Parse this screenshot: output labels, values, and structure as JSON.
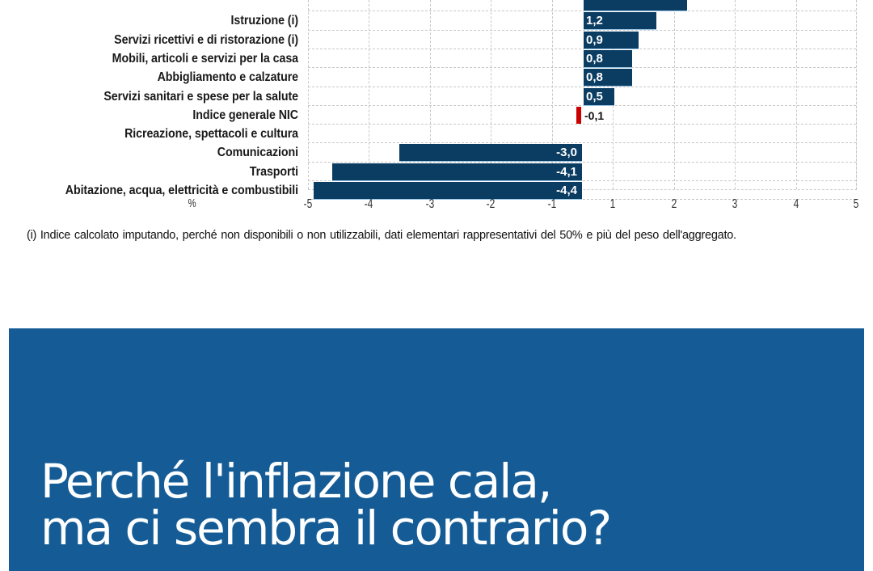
{
  "chart_data": {
    "type": "bar",
    "orientation": "horizontal",
    "unit_label": "%",
    "categories": [
      "(cut off)",
      "Istruzione (i)",
      "Servizi ricettivi e di ristorazione (i)",
      "Mobili, articoli e servizi per la casa",
      "Abbigliamento e calzature",
      "Servizi sanitari e spese per la salute",
      "Indice generale NIC",
      "Ricreazione, spettacoli e cultura",
      "Comunicazioni",
      "Trasporti",
      "Abitazione, acqua, elettricità e combustibili"
    ],
    "values": [
      1.7,
      1.2,
      0.9,
      0.8,
      0.8,
      0.5,
      -0.1,
      0.0,
      -3.0,
      -4.1,
      -4.4
    ],
    "value_labels": [
      "",
      "1,2",
      "0,9",
      "0,8",
      "0,8",
      "0,5",
      "-0,1",
      "",
      "-3,0",
      "-4,1",
      "-4,4"
    ],
    "highlight": {
      "category": "Indice generale NIC",
      "color": "#cc0000"
    },
    "bar_color": "#0b3d63",
    "x_ticks": [
      "-5",
      "-4",
      "-3",
      "-2",
      "-1",
      "1",
      "2",
      "3",
      "4",
      "5"
    ],
    "xlim": [
      -5,
      5
    ],
    "grid": true,
    "legend": null
  },
  "chart": {
    "unit": "%",
    "rows": [
      {
        "label": "",
        "value": 1.7,
        "value_label": "",
        "kind": "pos"
      },
      {
        "label": "Istruzione (i)",
        "value": 1.2,
        "value_label": "1,2",
        "kind": "pos"
      },
      {
        "label": "Servizi ricettivi e di ristorazione (i)",
        "value": 0.9,
        "value_label": "0,9",
        "kind": "pos"
      },
      {
        "label": "Mobili, articoli e servizi per la casa",
        "value": 0.8,
        "value_label": "0,8",
        "kind": "pos"
      },
      {
        "label": "Abbigliamento e calzature",
        "value": 0.8,
        "value_label": "0,8",
        "kind": "pos"
      },
      {
        "label": "Servizi sanitari e spese per la salute",
        "value": 0.5,
        "value_label": "0,5",
        "kind": "pos"
      },
      {
        "label": "Indice generale NIC",
        "value": -0.1,
        "value_label": "-0,1",
        "kind": "red"
      },
      {
        "label": "Ricreazione, spettacoli e cultura",
        "value": 0.0,
        "value_label": "",
        "kind": "none"
      },
      {
        "label": "Comunicazioni",
        "value": -3.0,
        "value_label": "-3,0",
        "kind": "neg"
      },
      {
        "label": "Trasporti",
        "value": -4.1,
        "value_label": "-4,1",
        "kind": "neg"
      },
      {
        "label": "Abitazione, acqua, elettricità e combustibili",
        "value": -4.4,
        "value_label": "-4,4",
        "kind": "neg"
      }
    ],
    "ticks": [
      "-5",
      "-4",
      "-3",
      "-2",
      "-1",
      "1",
      "2",
      "3",
      "4",
      "5"
    ],
    "footnote": "(i) Indice calcolato imputando, perché non disponibili o non utilizzabili, dati elementari rappresentativi del 50% e più del peso dell'aggregato."
  },
  "banner": {
    "line1": "Perché l'inflazione cala,",
    "line2": "ma ci sembra il contrario?",
    "background": "#155c96"
  }
}
